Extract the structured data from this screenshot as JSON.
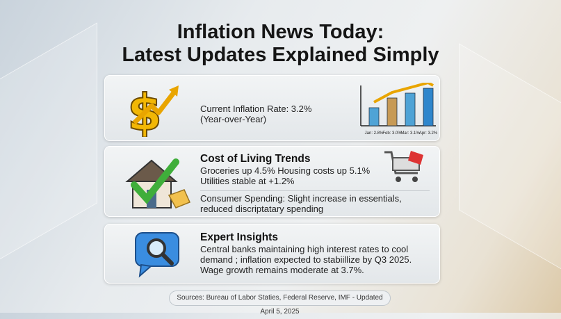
{
  "title_line1": "Inflation News Today:",
  "title_line2": "Latest Updates Explained Simply",
  "cards": [
    {
      "icon": "dollar-arrow-icon",
      "line1": "Current Inflation Rate: 3.2%",
      "line2": "(Year-over-Year)"
    },
    {
      "icon": "house-check-icon",
      "heading": "Cost of Living Trends",
      "line1": "Groceries up 4.5% Housing costs up 5.1%",
      "line2": "Utilities stable at +1.2%",
      "line3": "Consumer Spending: Slight increase in essentials,",
      "line4": "reduced discriptatary spending",
      "side_icon": "shopping-cart-icon"
    },
    {
      "icon": "magnifier-chat-icon",
      "heading": "Expert Insights",
      "line1": "Central banks maintaining high interest rates to cool",
      "line2": "demand ; inflation expected to stabiillize by Q3 2025.",
      "line3": "Wage growth remains moderate at 3.7%."
    }
  ],
  "chart_data": {
    "type": "bar",
    "categories": [
      "Jan: 2.8%",
      "Feb: 3.0%",
      "Mar: 3.1%",
      "Apr: 3.2%"
    ],
    "values": [
      2.8,
      3.0,
      3.1,
      3.2
    ],
    "trend_arrow": true,
    "colors": [
      "#4fa3d6",
      "#c79a55",
      "#4fa3d6",
      "#2f86cc"
    ]
  },
  "sources": "Sources: Bureau of Labor Staties, Federal Reserve, IMF - Updated April 5, 2025"
}
